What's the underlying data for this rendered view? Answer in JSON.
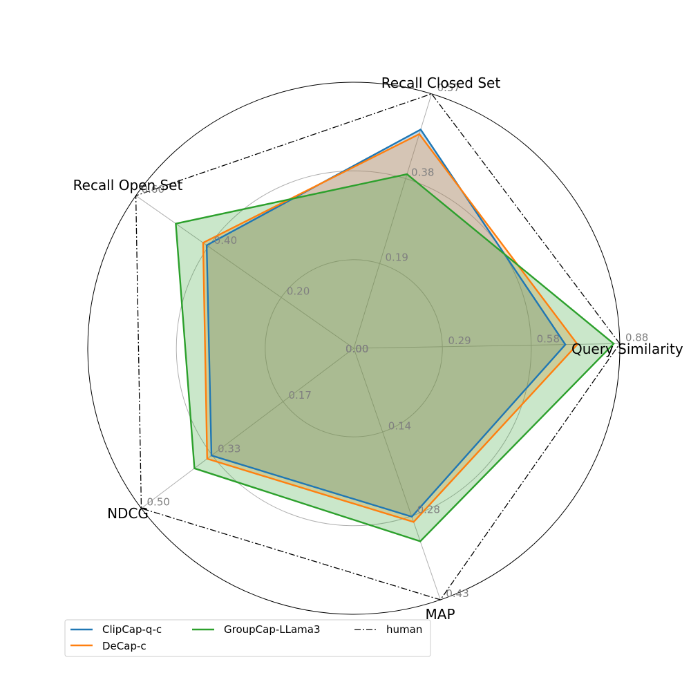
{
  "chart_data": {
    "type": "radar",
    "axes": [
      "Query Similarity",
      "Recall Closed Set",
      "Recall Open Set",
      "NDCG",
      "MAP"
    ],
    "axis_max": [
      0.88,
      0.57,
      0.6,
      0.5,
      0.43
    ],
    "ring_fractions": [
      0.333,
      0.667,
      1.0
    ],
    "tick_labels": [
      [
        "0.00",
        "0.29",
        "0.58",
        "0.88"
      ],
      [
        "0.00",
        "0.19",
        "0.38",
        "0.57"
      ],
      [
        "0.00",
        "0.20",
        "0.40",
        "0.60"
      ],
      [
        "0.00",
        "0.17",
        "0.33",
        "0.50"
      ],
      [
        "0.00",
        "0.14",
        "0.28",
        "0.43"
      ]
    ],
    "series": [
      {
        "name": "ClipCap-q-c",
        "color": "#1f77b4",
        "style": "solid",
        "fill": true,
        "values": [
          0.7,
          0.49,
          0.405,
          0.335,
          0.288
        ]
      },
      {
        "name": "DeCap-c",
        "color": "#ff7f0e",
        "style": "solid",
        "fill": true,
        "values": [
          0.74,
          0.48,
          0.415,
          0.345,
          0.297
        ]
      },
      {
        "name": "GroupCap-LLama3",
        "color": "#2ca02c",
        "style": "solid",
        "fill": true,
        "values": [
          0.86,
          0.39,
          0.49,
          0.375,
          0.33
        ]
      },
      {
        "name": "human",
        "color": "#000000",
        "style": "dashdot",
        "fill": false,
        "values": [
          0.88,
          0.57,
          0.6,
          0.5,
          0.43
        ]
      }
    ],
    "legend_position": "bottom-left"
  }
}
